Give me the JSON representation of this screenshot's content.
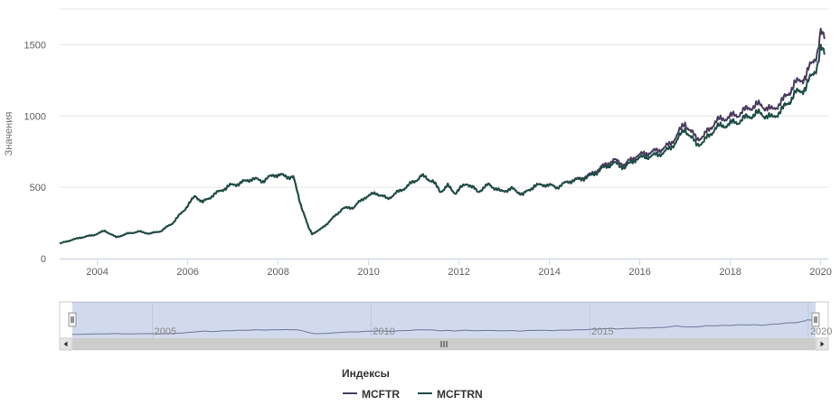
{
  "chart_data": {
    "type": "line",
    "ylabel": "Значения",
    "ylim": [
      0,
      1750
    ],
    "xlim": [
      "2003-03",
      "2020-03"
    ],
    "grid": true,
    "y_ticks": [
      "0",
      "500",
      "1000",
      "1500"
    ],
    "x_ticks": [
      "2004",
      "2006",
      "2008",
      "2010",
      "2012",
      "2014",
      "2016",
      "2018",
      "2020"
    ],
    "navigator_ticks": [
      "2005",
      "2010",
      "2015",
      "2020"
    ],
    "legend": {
      "title": "Индексы",
      "placement": "bottom-center"
    },
    "colors": {
      "MCFTR": "#4b3c5e",
      "MCFTRN": "#1e4d46"
    },
    "series": [
      {
        "name": "MCFTR",
        "x": [
          "2003-03",
          "2003-06",
          "2003-09",
          "2003-12",
          "2004-03",
          "2004-06",
          "2004-09",
          "2004-12",
          "2005-03",
          "2005-06",
          "2005-09",
          "2005-12",
          "2006-03",
          "2006-05",
          "2006-08",
          "2006-12",
          "2007-03",
          "2007-06",
          "2007-09",
          "2007-12",
          "2008-05",
          "2008-07",
          "2008-09",
          "2008-10",
          "2008-12",
          "2009-03",
          "2009-06",
          "2009-09",
          "2009-12",
          "2010-03",
          "2010-06",
          "2010-09",
          "2010-12",
          "2011-03",
          "2011-06",
          "2011-08",
          "2011-10",
          "2011-12",
          "2012-03",
          "2012-06",
          "2012-09",
          "2012-12",
          "2013-03",
          "2013-06",
          "2013-09",
          "2013-12",
          "2014-03",
          "2014-06",
          "2014-09",
          "2014-12",
          "2015-03",
          "2015-06",
          "2015-09",
          "2015-12",
          "2016-03",
          "2016-06",
          "2016-09",
          "2016-12",
          "2017-01",
          "2017-04",
          "2017-06",
          "2017-09",
          "2017-12",
          "2018-03",
          "2018-06",
          "2018-09",
          "2018-12",
          "2019-03",
          "2019-06",
          "2019-09",
          "2019-12",
          "2020-01",
          "2020-02"
        ],
        "values": [
          105,
          130,
          150,
          165,
          195,
          150,
          175,
          190,
          175,
          195,
          250,
          340,
          440,
          395,
          450,
          510,
          530,
          560,
          545,
          590,
          570,
          380,
          220,
          175,
          200,
          270,
          350,
          360,
          430,
          460,
          420,
          470,
          520,
          580,
          545,
          470,
          510,
          460,
          530,
          470,
          520,
          470,
          490,
          450,
          510,
          520,
          500,
          540,
          560,
          590,
          645,
          690,
          660,
          720,
          740,
          760,
          800,
          910,
          950,
          840,
          860,
          960,
          990,
          1010,
          1060,
          1080,
          1040,
          1110,
          1220,
          1280,
          1440,
          1580,
          1540
        ]
      },
      {
        "name": "MCFTRN",
        "x": [
          "2003-03",
          "2003-06",
          "2003-09",
          "2003-12",
          "2004-03",
          "2004-06",
          "2004-09",
          "2004-12",
          "2005-03",
          "2005-06",
          "2005-09",
          "2005-12",
          "2006-03",
          "2006-05",
          "2006-08",
          "2006-12",
          "2007-03",
          "2007-06",
          "2007-09",
          "2007-12",
          "2008-05",
          "2008-07",
          "2008-09",
          "2008-10",
          "2008-12",
          "2009-03",
          "2009-06",
          "2009-09",
          "2009-12",
          "2010-03",
          "2010-06",
          "2010-09",
          "2010-12",
          "2011-03",
          "2011-06",
          "2011-08",
          "2011-10",
          "2011-12",
          "2012-03",
          "2012-06",
          "2012-09",
          "2012-12",
          "2013-03",
          "2013-06",
          "2013-09",
          "2013-12",
          "2014-03",
          "2014-06",
          "2014-09",
          "2014-12",
          "2015-03",
          "2015-06",
          "2015-09",
          "2015-12",
          "2016-03",
          "2016-06",
          "2016-09",
          "2016-12",
          "2017-01",
          "2017-04",
          "2017-06",
          "2017-09",
          "2017-12",
          "2018-03",
          "2018-06",
          "2018-09",
          "2018-12",
          "2019-03",
          "2019-06",
          "2019-09",
          "2019-12",
          "2020-01",
          "2020-02"
        ],
        "values": [
          105,
          130,
          150,
          165,
          195,
          150,
          175,
          190,
          175,
          195,
          250,
          340,
          440,
          395,
          450,
          510,
          530,
          560,
          545,
          590,
          570,
          380,
          220,
          175,
          200,
          270,
          350,
          360,
          430,
          460,
          420,
          470,
          520,
          580,
          545,
          470,
          510,
          460,
          530,
          470,
          520,
          470,
          490,
          450,
          510,
          520,
          500,
          540,
          555,
          580,
          630,
          670,
          640,
          700,
          715,
          730,
          770,
          870,
          910,
          800,
          820,
          915,
          940,
          960,
          1000,
          1020,
          985,
          1050,
          1150,
          1200,
          1350,
          1470,
          1430
        ]
      }
    ]
  }
}
